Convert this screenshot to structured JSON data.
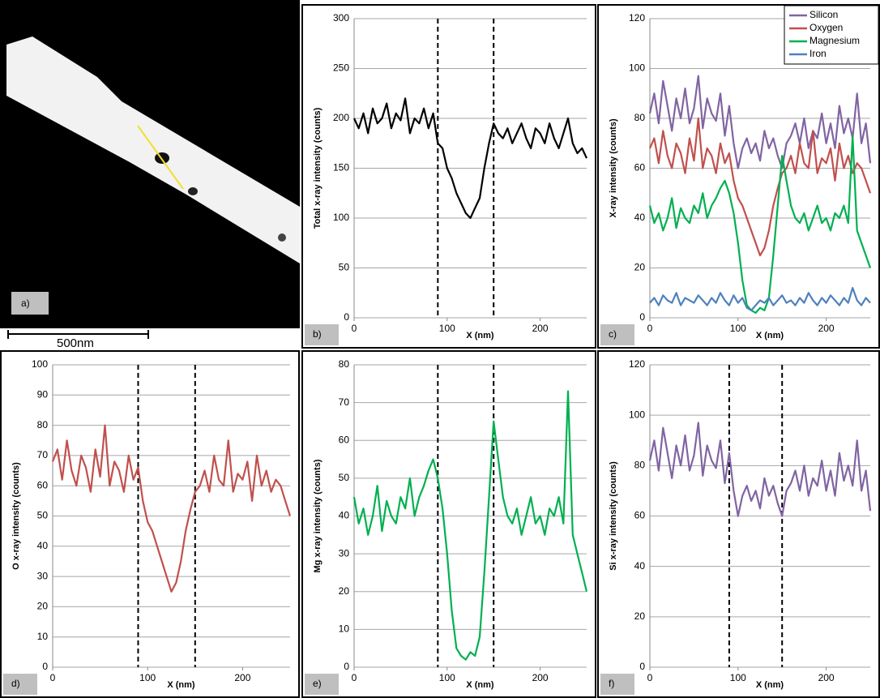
{
  "image_panel": {
    "label": "a)",
    "scale_bar": "500nm"
  },
  "chart_data": [
    {
      "type": "line",
      "panel_label": "b)",
      "ylabel": "Total x-ray intensity (counts)",
      "xlabel": "X (nm)",
      "x": [
        0,
        5,
        10,
        15,
        20,
        25,
        30,
        35,
        40,
        45,
        50,
        55,
        60,
        65,
        70,
        75,
        80,
        85,
        90,
        95,
        100,
        105,
        110,
        115,
        120,
        125,
        130,
        135,
        140,
        145,
        150,
        155,
        160,
        165,
        170,
        175,
        180,
        185,
        190,
        195,
        200,
        205,
        210,
        215,
        220,
        225,
        230,
        235,
        240,
        245,
        250
      ],
      "series": [
        {
          "color": "#000000",
          "values": [
            200,
            190,
            205,
            185,
            210,
            195,
            200,
            215,
            190,
            205,
            198,
            220,
            185,
            200,
            195,
            210,
            190,
            205,
            175,
            170,
            150,
            140,
            125,
            115,
            105,
            100,
            110,
            120,
            150,
            175,
            195,
            185,
            180,
            190,
            175,
            185,
            195,
            180,
            170,
            190,
            185,
            175,
            195,
            180,
            170,
            185,
            200,
            175,
            165,
            170,
            160
          ]
        }
      ],
      "xlim": [
        0,
        250
      ],
      "ylim": [
        0,
        300
      ],
      "xticks": [
        0,
        100,
        200
      ],
      "yticks": [
        0,
        50,
        100,
        150,
        200,
        250,
        300
      ],
      "grid": true,
      "vlines": [
        90,
        150
      ]
    },
    {
      "type": "line",
      "panel_label": "c)",
      "ylabel": "X-ray intensity (counts)",
      "xlabel": "X (nm)",
      "x": [
        0,
        5,
        10,
        15,
        20,
        25,
        30,
        35,
        40,
        45,
        50,
        55,
        60,
        65,
        70,
        75,
        80,
        85,
        90,
        95,
        100,
        105,
        110,
        115,
        120,
        125,
        130,
        135,
        140,
        145,
        150,
        155,
        160,
        165,
        170,
        175,
        180,
        185,
        190,
        195,
        200,
        205,
        210,
        215,
        220,
        225,
        230,
        235,
        240,
        245,
        250
      ],
      "series": [
        {
          "name": "Silicon",
          "color": "#8064a2",
          "values": [
            82,
            90,
            78,
            95,
            85,
            75,
            88,
            80,
            92,
            78,
            84,
            97,
            76,
            88,
            82,
            79,
            90,
            73,
            85,
            70,
            60,
            68,
            72,
            66,
            70,
            63,
            75,
            68,
            72,
            65,
            60,
            70,
            73,
            78,
            70,
            80,
            68,
            75,
            72,
            82,
            70,
            78,
            68,
            85,
            74,
            80,
            72,
            90,
            70,
            78,
            62
          ]
        },
        {
          "name": "Oxygen",
          "color": "#c0504d",
          "values": [
            68,
            72,
            62,
            75,
            65,
            60,
            70,
            66,
            58,
            72,
            63,
            80,
            60,
            68,
            65,
            58,
            70,
            62,
            66,
            55,
            48,
            45,
            40,
            35,
            30,
            25,
            28,
            35,
            45,
            52,
            58,
            60,
            65,
            58,
            70,
            62,
            60,
            75,
            58,
            64,
            62,
            68,
            55,
            70,
            60,
            65,
            58,
            62,
            60,
            55,
            50
          ]
        },
        {
          "name": "Magnesium",
          "color": "#00b050",
          "values": [
            45,
            38,
            42,
            35,
            40,
            48,
            36,
            44,
            40,
            38,
            45,
            42,
            50,
            40,
            45,
            48,
            52,
            55,
            50,
            42,
            30,
            15,
            5,
            3,
            2,
            4,
            3,
            8,
            25,
            45,
            65,
            55,
            45,
            40,
            38,
            42,
            35,
            40,
            45,
            38,
            40,
            35,
            42,
            40,
            45,
            38,
            73,
            35,
            30,
            25,
            20
          ]
        },
        {
          "name": "Iron",
          "color": "#4f81bd",
          "values": [
            6,
            8,
            5,
            9,
            7,
            6,
            10,
            5,
            8,
            7,
            6,
            9,
            7,
            5,
            8,
            6,
            10,
            7,
            5,
            9,
            6,
            8,
            4,
            3,
            5,
            7,
            6,
            8,
            5,
            7,
            9,
            6,
            7,
            5,
            8,
            6,
            10,
            7,
            5,
            8,
            6,
            9,
            7,
            5,
            8,
            6,
            12,
            7,
            5,
            8,
            6
          ]
        }
      ],
      "xlim": [
        0,
        250
      ],
      "ylim": [
        0,
        120
      ],
      "xticks": [
        0,
        100,
        200
      ],
      "yticks": [
        0,
        20,
        40,
        60,
        80,
        100,
        120
      ],
      "grid": true,
      "legend": "upper right"
    },
    {
      "type": "line",
      "panel_label": "d)",
      "ylabel": "O x-ray intensity (counts)",
      "xlabel": "X (nm)",
      "x": [
        0,
        5,
        10,
        15,
        20,
        25,
        30,
        35,
        40,
        45,
        50,
        55,
        60,
        65,
        70,
        75,
        80,
        85,
        90,
        95,
        100,
        105,
        110,
        115,
        120,
        125,
        130,
        135,
        140,
        145,
        150,
        155,
        160,
        165,
        170,
        175,
        180,
        185,
        190,
        195,
        200,
        205,
        210,
        215,
        220,
        225,
        230,
        235,
        240,
        245,
        250
      ],
      "series": [
        {
          "color": "#c0504d",
          "values": [
            68,
            72,
            62,
            75,
            65,
            60,
            70,
            66,
            58,
            72,
            63,
            80,
            60,
            68,
            65,
            58,
            70,
            62,
            66,
            55,
            48,
            45,
            40,
            35,
            30,
            25,
            28,
            35,
            45,
            52,
            58,
            60,
            65,
            58,
            70,
            62,
            60,
            75,
            58,
            64,
            62,
            68,
            55,
            70,
            60,
            65,
            58,
            62,
            60,
            55,
            50
          ]
        }
      ],
      "xlim": [
        0,
        250
      ],
      "ylim": [
        0,
        100
      ],
      "xticks": [
        0,
        100,
        200
      ],
      "yticks": [
        0,
        10,
        20,
        30,
        40,
        50,
        60,
        70,
        80,
        90,
        100
      ],
      "grid": true,
      "vlines": [
        90,
        150
      ]
    },
    {
      "type": "line",
      "panel_label": "e)",
      "ylabel": "Mg x-ray intensity (counts)",
      "xlabel": "X (nm)",
      "x": [
        0,
        5,
        10,
        15,
        20,
        25,
        30,
        35,
        40,
        45,
        50,
        55,
        60,
        65,
        70,
        75,
        80,
        85,
        90,
        95,
        100,
        105,
        110,
        115,
        120,
        125,
        130,
        135,
        140,
        145,
        150,
        155,
        160,
        165,
        170,
        175,
        180,
        185,
        190,
        195,
        200,
        205,
        210,
        215,
        220,
        225,
        230,
        235,
        240,
        245,
        250
      ],
      "series": [
        {
          "color": "#00b050",
          "values": [
            45,
            38,
            42,
            35,
            40,
            48,
            36,
            44,
            40,
            38,
            45,
            42,
            50,
            40,
            45,
            48,
            52,
            55,
            50,
            42,
            30,
            15,
            5,
            3,
            2,
            4,
            3,
            8,
            25,
            45,
            65,
            55,
            45,
            40,
            38,
            42,
            35,
            40,
            45,
            38,
            40,
            35,
            42,
            40,
            45,
            38,
            73,
            35,
            30,
            25,
            20
          ]
        }
      ],
      "xlim": [
        0,
        250
      ],
      "ylim": [
        0,
        80
      ],
      "xticks": [
        0,
        100,
        200
      ],
      "yticks": [
        0,
        10,
        20,
        30,
        40,
        50,
        60,
        70,
        80
      ],
      "grid": true,
      "vlines": [
        90,
        150
      ]
    },
    {
      "type": "line",
      "panel_label": "f)",
      "ylabel": "Si x-ray intensity (counts)",
      "xlabel": "X (nm)",
      "x": [
        0,
        5,
        10,
        15,
        20,
        25,
        30,
        35,
        40,
        45,
        50,
        55,
        60,
        65,
        70,
        75,
        80,
        85,
        90,
        95,
        100,
        105,
        110,
        115,
        120,
        125,
        130,
        135,
        140,
        145,
        150,
        155,
        160,
        165,
        170,
        175,
        180,
        185,
        190,
        195,
        200,
        205,
        210,
        215,
        220,
        225,
        230,
        235,
        240,
        245,
        250
      ],
      "series": [
        {
          "color": "#8064a2",
          "values": [
            82,
            90,
            78,
            95,
            85,
            75,
            88,
            80,
            92,
            78,
            84,
            97,
            76,
            88,
            82,
            79,
            90,
            73,
            85,
            70,
            60,
            68,
            72,
            66,
            70,
            63,
            75,
            68,
            72,
            65,
            60,
            70,
            73,
            78,
            70,
            80,
            68,
            75,
            72,
            82,
            70,
            78,
            68,
            85,
            74,
            80,
            72,
            90,
            70,
            78,
            62
          ]
        }
      ],
      "xlim": [
        0,
        250
      ],
      "ylim": [
        0,
        120
      ],
      "xticks": [
        0,
        100,
        200
      ],
      "yticks": [
        0,
        20,
        40,
        60,
        80,
        100,
        120
      ],
      "grid": true,
      "vlines": [
        90,
        150
      ]
    }
  ]
}
